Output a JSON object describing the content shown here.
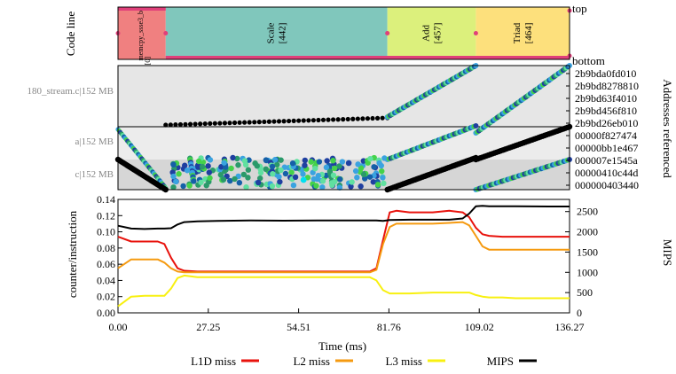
{
  "time_range": [
    0,
    136.27
  ],
  "code_panel": {
    "ylabel": "Code line",
    "top_label": "top",
    "bottom_label": "bottom",
    "segments": [
      {
        "name": "memcpy_ssse3_b",
        "count": "[0]",
        "start": 0,
        "end": 14.4,
        "color": "#f08080"
      },
      {
        "name": "Scale",
        "count": "[442]",
        "start": 14.4,
        "end": 81.3,
        "color": "#80c7bc"
      },
      {
        "name": "Add",
        "count": "[457]",
        "start": 81.3,
        "end": 108.0,
        "color": "#dcf07c"
      },
      {
        "name": "Triad",
        "count": "[464]",
        "start": 108.0,
        "end": 136.27,
        "color": "#fde07c"
      }
    ],
    "marker_color": "#e0407a"
  },
  "address_panel": {
    "ylabel": "Addresses referenced",
    "regions": [
      {
        "label": "180_stream.c|152 MB",
        "shade": "#e6e6e6"
      },
      {
        "label": "a|152 MB",
        "shade": "#ececec"
      },
      {
        "label": "c|152 MB",
        "shade": "#d6d6d6"
      }
    ],
    "ticks": [
      "2b9bda0fd010",
      "2b9bd8278810",
      "2b9bd63f4010",
      "2b9bd456f810",
      "2b9bd26eb010",
      "00000f827474",
      "00000bb1e467",
      "000007e1545a",
      "00000410c44d",
      "000000403440"
    ]
  },
  "chart_data": {
    "type": "line",
    "x": [
      0,
      4,
      8,
      12,
      14,
      16,
      18,
      20,
      24,
      30,
      40,
      50,
      60,
      70,
      76,
      78,
      80,
      82,
      84,
      88,
      95,
      100,
      104,
      106,
      108,
      110,
      112,
      116,
      120,
      130,
      136.27
    ],
    "series": [
      {
        "name": "L1D miss",
        "axis": "left",
        "color": "#e8120c",
        "values": [
          0.094,
          0.088,
          0.088,
          0.088,
          0.085,
          0.068,
          0.055,
          0.052,
          0.051,
          0.051,
          0.051,
          0.051,
          0.051,
          0.051,
          0.051,
          0.055,
          0.09,
          0.124,
          0.126,
          0.124,
          0.124,
          0.126,
          0.124,
          0.118,
          0.105,
          0.097,
          0.095,
          0.094,
          0.094,
          0.094,
          0.094
        ]
      },
      {
        "name": "L2 miss",
        "axis": "left",
        "color": "#f59a10",
        "values": [
          0.055,
          0.066,
          0.066,
          0.066,
          0.062,
          0.055,
          0.051,
          0.05,
          0.05,
          0.05,
          0.05,
          0.05,
          0.05,
          0.05,
          0.05,
          0.053,
          0.085,
          0.106,
          0.11,
          0.11,
          0.11,
          0.111,
          0.112,
          0.108,
          0.095,
          0.082,
          0.078,
          0.078,
          0.078,
          0.078,
          0.078
        ]
      },
      {
        "name": "L3 miss",
        "axis": "left",
        "color": "#f8f010",
        "values": [
          0.008,
          0.02,
          0.021,
          0.021,
          0.021,
          0.03,
          0.043,
          0.046,
          0.044,
          0.044,
          0.044,
          0.044,
          0.044,
          0.044,
          0.044,
          0.04,
          0.028,
          0.024,
          0.024,
          0.024,
          0.025,
          0.025,
          0.025,
          0.025,
          0.022,
          0.02,
          0.019,
          0.019,
          0.018,
          0.018,
          0.018
        ]
      },
      {
        "name": "MIPS",
        "axis": "right",
        "color": "#000000",
        "values": [
          2150,
          2080,
          2070,
          2080,
          2080,
          2090,
          2180,
          2240,
          2260,
          2270,
          2280,
          2275,
          2280,
          2280,
          2280,
          2280,
          2270,
          2290,
          2295,
          2300,
          2300,
          2300,
          2330,
          2450,
          2630,
          2640,
          2630,
          2630,
          2630,
          2625,
          2625
        ]
      }
    ],
    "xlabel": "Time (ms)",
    "ylabel": "counter/instruction",
    "y2label": "MIPS",
    "xlim": [
      0,
      136.27
    ],
    "ylim": [
      0,
      0.14
    ],
    "y2lim": [
      0,
      2800
    ],
    "xticks": [
      "0.00",
      "27.25",
      "54.51",
      "81.76",
      "109.02",
      "136.27"
    ],
    "yticks": [
      "0.00",
      "0.02",
      "0.04",
      "0.06",
      "0.08",
      "0.10",
      "0.12",
      "0.14"
    ],
    "y2ticks": [
      "0",
      "500",
      "1000",
      "1500",
      "2000",
      "2500"
    ],
    "legend_position": "bottom"
  }
}
